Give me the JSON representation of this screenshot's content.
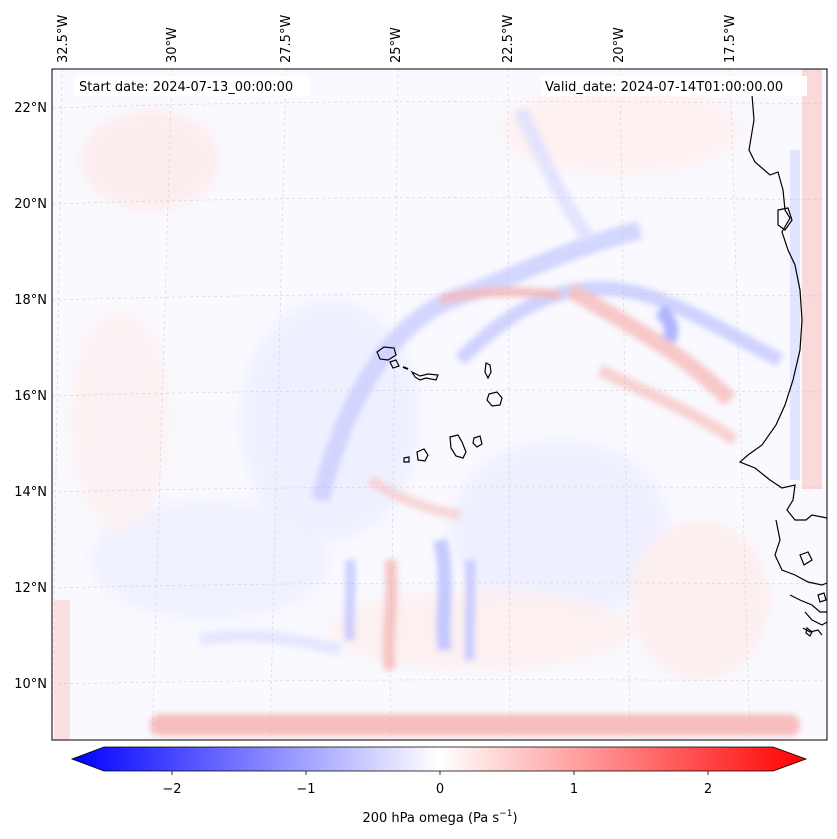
{
  "map": {
    "start_date_text": "Start date: 2024-07-13_00:00:00",
    "valid_date_text": "Valid_date: 2024-07-14T01:00:00.00",
    "lon_labels": [
      "32.5°W",
      "30°W",
      "27.5°W",
      "25°W",
      "22.5°W",
      "20°W",
      "17.5°W"
    ],
    "lat_labels": [
      "22°N",
      "20°N",
      "18°N",
      "16°N",
      "14°N",
      "12°N",
      "10°N"
    ],
    "field": "200 hPa omega",
    "extent": {
      "lon_min": -33.0,
      "lon_max": -15.5,
      "lat_min": 8.8,
      "lat_max": 22.7
    },
    "coastline_color": "#000000"
  },
  "colorbar": {
    "label_main": "200 hPa omega (Pa s",
    "label_sup": "−1",
    "label_close": ")",
    "ticks": [
      "−2",
      "−1",
      "0",
      "1",
      "2"
    ],
    "tick_values": [
      -2,
      -1,
      0,
      1,
      2
    ],
    "range": [
      -2.5,
      2.5
    ],
    "color_min": "#0000ff",
    "color_mid": "#ffffff",
    "color_max": "#ff0000"
  }
}
